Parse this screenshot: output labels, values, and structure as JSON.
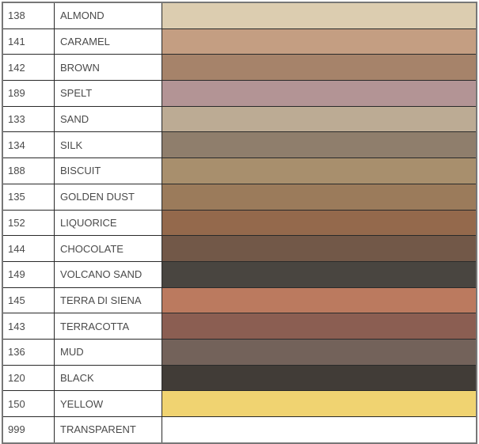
{
  "colors": [
    {
      "code": "138",
      "name": "ALMOND",
      "hex": "#dccdb0"
    },
    {
      "code": "141",
      "name": "CARAMEL",
      "hex": "#c49e82"
    },
    {
      "code": "142",
      "name": "BROWN",
      "hex": "#a6836a"
    },
    {
      "code": "189",
      "name": "SPELT",
      "hex": "#b39495"
    },
    {
      "code": "133",
      "name": "SAND",
      "hex": "#bcab94"
    },
    {
      "code": "134",
      "name": "SILK",
      "hex": "#8f7e6c"
    },
    {
      "code": "188",
      "name": "BISCUIT",
      "hex": "#a88f6d"
    },
    {
      "code": "135",
      "name": "GOLDEN DUST",
      "hex": "#9b7b5b"
    },
    {
      "code": "152",
      "name": "LIQUORICE",
      "hex": "#94694c"
    },
    {
      "code": "144",
      "name": "CHOCOLATE",
      "hex": "#725848"
    },
    {
      "code": "149",
      "name": "VOLCANO SAND",
      "hex": "#494540"
    },
    {
      "code": "145",
      "name": "TERRA DI SIENA",
      "hex": "#bb7a5f"
    },
    {
      "code": "143",
      "name": "TERRACOTTA",
      "hex": "#8b5e52"
    },
    {
      "code": "136",
      "name": "MUD",
      "hex": "#73625a"
    },
    {
      "code": "120",
      "name": "BLACK",
      "hex": "#413c37"
    },
    {
      "code": "150",
      "name": "YELLOW",
      "hex": "#f0d371"
    },
    {
      "code": "999",
      "name": "TRANSPARENT",
      "hex": "#ffffff"
    }
  ]
}
